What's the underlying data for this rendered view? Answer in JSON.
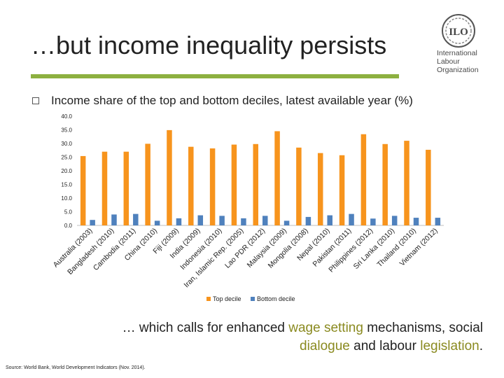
{
  "header": {
    "title": "…but income inequality persists",
    "logo_lines": [
      "International",
      "Labour",
      "Organization"
    ],
    "logo_mark": "ILO"
  },
  "subtitle": "Income share of the top and bottom deciles, latest available year (%)",
  "colors": {
    "top": "#f7941d",
    "bottom": "#4f81bd",
    "rule": "#8db040"
  },
  "chart_data": {
    "type": "bar",
    "categories": [
      "Australia (2003)",
      "Bangladesh (2010)",
      "Cambodia (2011)",
      "China (2010)",
      "Fiji (2009)",
      "India (2009)",
      "Indonesia (2010)",
      "Iran, Islamic Rep. (2005)",
      "Lao PDR (2012)",
      "Malaysia (2009)",
      "Mongolia (2008)",
      "Nepal (2010)",
      "Pakistan (2011)",
      "Philippines (2012)",
      "Sri Lanka (2010)",
      "Thailand (2010)",
      "Vietnam (2012)"
    ],
    "series": [
      {
        "name": "Top decile",
        "values": [
          25.4,
          27.0,
          27.0,
          29.9,
          34.9,
          28.8,
          28.2,
          29.6,
          29.8,
          34.5,
          28.5,
          26.5,
          25.7,
          33.4,
          29.8,
          31.0,
          27.7
        ]
      },
      {
        "name": "Bottom decile",
        "values": [
          2.0,
          4.0,
          4.2,
          1.7,
          2.6,
          3.7,
          3.5,
          2.6,
          3.5,
          1.7,
          3.1,
          3.7,
          4.2,
          2.5,
          3.5,
          2.8,
          2.8
        ]
      }
    ],
    "yticks": [
      "0.0",
      "5.0",
      "10.0",
      "15.0",
      "20.0",
      "25.0",
      "30.0",
      "35.0",
      "40.0"
    ],
    "ylim": [
      0,
      40
    ],
    "grid": false,
    "legend": "bottom-center"
  },
  "message": {
    "parts": [
      {
        "text": "… which calls for enhanced ",
        "highlight": false
      },
      {
        "text": "wage setting",
        "highlight": true
      },
      {
        "text": " mechanisms, social ",
        "highlight": false
      },
      {
        "text": "dialogue",
        "highlight": true
      },
      {
        "text": " and labour ",
        "highlight": false
      },
      {
        "text": "legislation",
        "highlight": true
      },
      {
        "text": ".",
        "highlight": false
      }
    ]
  },
  "source": "Source: World Bank, World Development Indicators (Nov. 2014)."
}
